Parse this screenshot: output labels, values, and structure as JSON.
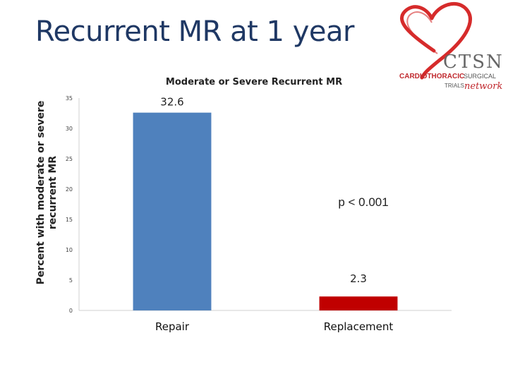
{
  "slide": {
    "title": "Recurrent MR at 1 year"
  },
  "logo": {
    "name": "heart-logo",
    "acronym": "CTSN",
    "line1": "CARDIOTHORACIC",
    "line1b": "SURGICAL",
    "line2": "TRIALS",
    "line2b": "network",
    "colors": {
      "heart": "#d62b2b",
      "text_dark": "#555555",
      "text_red": "#c0282d"
    }
  },
  "chart_data": {
    "type": "bar",
    "title": "Moderate or Severe Recurrent MR",
    "ylabel_lines": [
      "Percent with moderate or severe",
      "recurrent MR"
    ],
    "xlabel": "",
    "categories": [
      "Repair",
      "Replacement"
    ],
    "values": [
      32.6,
      2.3
    ],
    "data_labels": [
      "32.6",
      "2.3"
    ],
    "bar_colors": [
      "#4f81bd",
      "#c00000"
    ],
    "ylim": [
      0,
      35
    ],
    "yticks": [
      0,
      5,
      10,
      15,
      20,
      25,
      30,
      35
    ],
    "grid": false,
    "legend": "none",
    "annotation": "p < 0.001"
  }
}
